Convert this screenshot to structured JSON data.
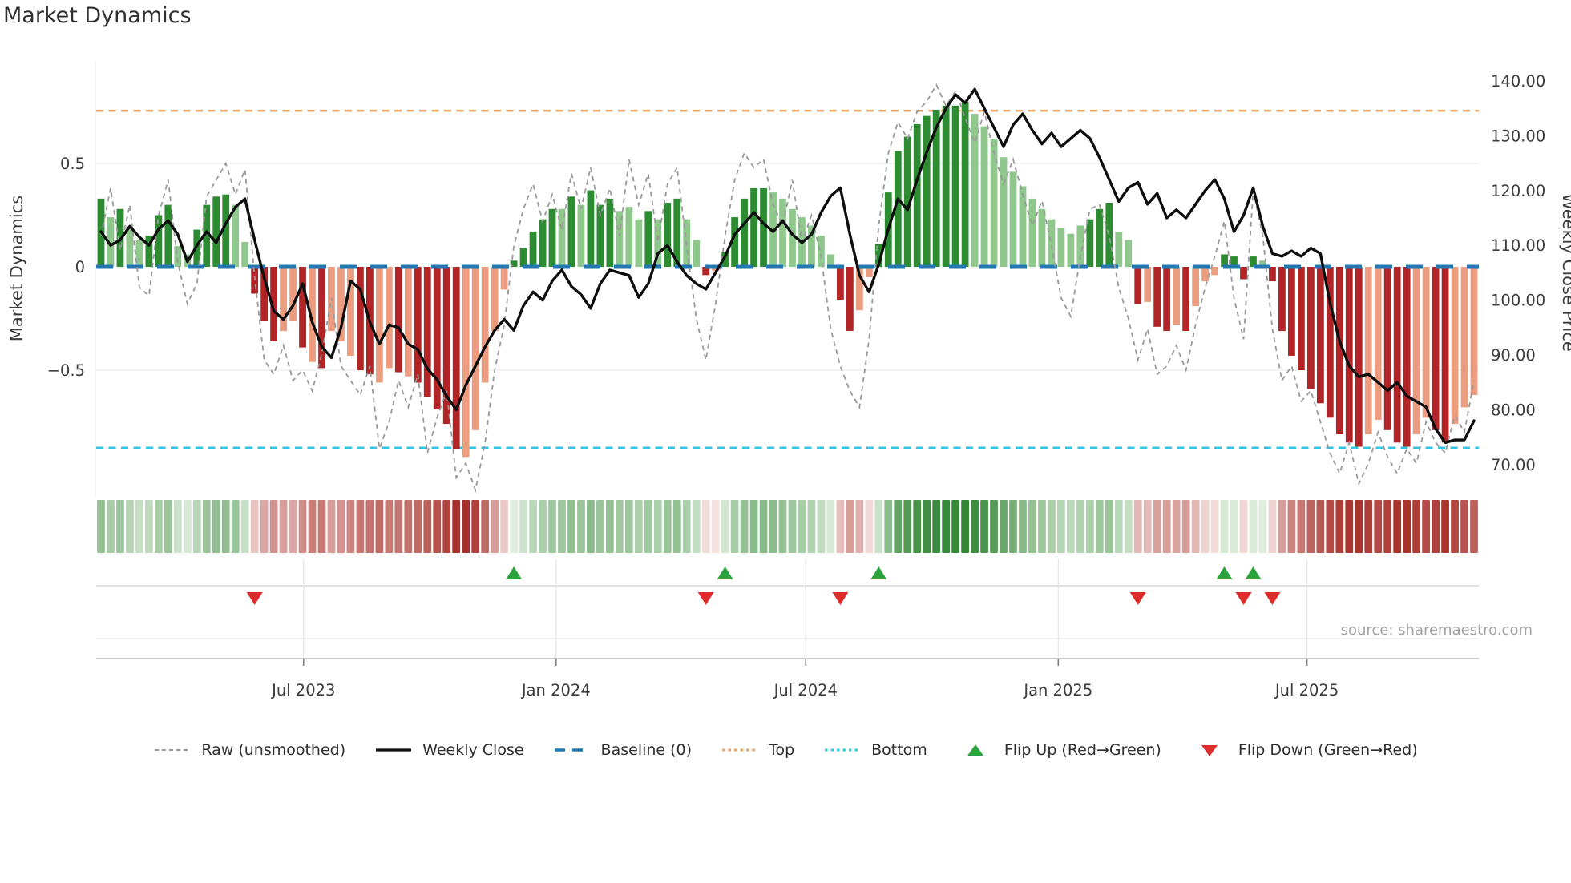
{
  "header": {
    "title": "Market Dynamics"
  },
  "source": {
    "text": "source: sharemaestro.com"
  },
  "colors": {
    "bar_dark_green": "#2d8c32",
    "bar_light_green": "#8fc78c",
    "bar_dark_red": "#b32427",
    "bar_light_red": "#ec9d7f",
    "baseline_blue": "#2577b2",
    "top_orange": "#f2a45f",
    "bottom_cyan": "#2fc6e6",
    "weekly_close_black": "#0e0e0e",
    "raw_gray": "#999999",
    "flip_up_green": "#2aa33c",
    "flip_down_red": "#dd2c2c",
    "grid_gray": "#ececec",
    "tick_text": "#3d3d3d",
    "source_text": "#a3a3a3"
  },
  "legend": {
    "items": [
      {
        "label": "Raw (unsmoothed)",
        "glyph": "raw-dashed-line"
      },
      {
        "label": "Weekly Close",
        "glyph": "solid-black-line"
      },
      {
        "label": "Baseline (0)",
        "glyph": "blue-dashed-line"
      },
      {
        "label": "Top",
        "glyph": "orange-dotted-line"
      },
      {
        "label": "Bottom",
        "glyph": "cyan-dotted-line"
      },
      {
        "label": "Flip Up (Red→Green)",
        "glyph": "green-up-triangle"
      },
      {
        "label": "Flip Down (Green→Red)",
        "glyph": "red-down-triangle"
      }
    ]
  },
  "chart_data": {
    "type": "combo",
    "title": "Market Dynamics",
    "left_axis": {
      "label": "Market Dynamics",
      "tick_labels": [
        "0.5",
        "0",
        "−0.5"
      ],
      "tick_values": [
        0.5,
        0,
        -0.5
      ],
      "range": [
        -1.11,
        1.0
      ]
    },
    "right_axis": {
      "label": "Weekly Close Price",
      "tick_labels": [
        "140.00",
        "130.00",
        "120.00",
        "110.00",
        "100.00",
        "90.00",
        "80.00",
        "70.00"
      ],
      "tick_values": [
        140,
        130,
        120,
        110,
        100,
        90,
        80,
        70
      ],
      "range": [
        64.2,
        143.8
      ]
    },
    "x_axis": {
      "tick_labels": [
        "Jul 2023",
        "Jan 2024",
        "Jul 2024",
        "Jan 2025",
        "Jul 2025"
      ],
      "tick_week_positions": [
        21.1,
        47.4,
        73.4,
        99.7,
        125.6
      ],
      "n_weeks": 144
    },
    "reference_lines": {
      "baseline": 0,
      "top": 0.755,
      "bottom": -0.875
    },
    "series": {
      "oscillator": {
        "type": "bar",
        "shades": "GgGggGGGggGGGGggRRRrrRrRrrrRRrrRrRRRRRrrrrrGGGGGgGgGGGgggGgGGggRrGGGGGgggggggRRrrGGGGGGGGGGggggggggggggGGGggRrRRrRrrrGGRGgRRRRRRRRRRrrRRRrrRRrrr",
        "values": [
          0.33,
          0.24,
          0.28,
          0.19,
          0.13,
          0.15,
          0.25,
          0.3,
          0.1,
          0.06,
          0.18,
          0.3,
          0.34,
          0.35,
          0.3,
          0.12,
          -0.13,
          -0.26,
          -0.36,
          -0.31,
          -0.26,
          -0.39,
          -0.46,
          -0.49,
          -0.31,
          -0.36,
          -0.43,
          -0.5,
          -0.52,
          -0.56,
          -0.49,
          -0.51,
          -0.53,
          -0.56,
          -0.63,
          -0.69,
          -0.76,
          -0.88,
          -0.92,
          -0.79,
          -0.56,
          -0.31,
          -0.11,
          0.03,
          0.09,
          0.17,
          0.23,
          0.28,
          0.28,
          0.34,
          0.3,
          0.37,
          0.3,
          0.33,
          0.27,
          0.29,
          0.23,
          0.27,
          0.23,
          0.31,
          0.33,
          0.23,
          0.13,
          -0.04,
          -0.02,
          0.07,
          0.24,
          0.33,
          0.38,
          0.38,
          0.36,
          0.33,
          0.28,
          0.24,
          0.2,
          0.15,
          0.06,
          -0.16,
          -0.31,
          -0.21,
          -0.05,
          0.11,
          0.36,
          0.56,
          0.63,
          0.69,
          0.73,
          0.76,
          0.78,
          0.78,
          0.8,
          0.74,
          0.68,
          0.62,
          0.53,
          0.46,
          0.39,
          0.33,
          0.28,
          0.23,
          0.19,
          0.16,
          0.2,
          0.23,
          0.28,
          0.31,
          0.17,
          0.13,
          -0.18,
          -0.17,
          -0.29,
          -0.31,
          -0.28,
          -0.31,
          -0.19,
          -0.07,
          -0.04,
          0.06,
          0.05,
          -0.06,
          0.05,
          0.03,
          -0.07,
          -0.31,
          -0.43,
          -0.5,
          -0.59,
          -0.66,
          -0.73,
          -0.81,
          -0.85,
          -0.87,
          -0.81,
          -0.74,
          -0.79,
          -0.85,
          -0.87,
          -0.81,
          -0.73,
          -0.79,
          -0.85,
          -0.76,
          -0.68,
          -0.62
        ]
      },
      "raw_unsmoothed": {
        "type": "line",
        "style": "dashed",
        "values": [
          0.15,
          0.38,
          0.08,
          0.3,
          -0.1,
          -0.14,
          0.25,
          0.42,
          0.02,
          -0.18,
          -0.08,
          0.34,
          0.42,
          0.5,
          0.35,
          0.47,
          -0.05,
          -0.45,
          -0.52,
          -0.38,
          -0.55,
          -0.5,
          -0.6,
          -0.42,
          -0.15,
          -0.48,
          -0.55,
          -0.62,
          -0.48,
          -0.88,
          -0.75,
          -0.55,
          -0.68,
          -0.52,
          -0.9,
          -0.73,
          -0.6,
          -1.02,
          -0.95,
          -1.08,
          -0.85,
          -0.5,
          -0.28,
          0.1,
          0.28,
          0.4,
          0.22,
          0.35,
          0.18,
          0.45,
          0.28,
          0.48,
          0.25,
          0.38,
          0.15,
          0.52,
          0.3,
          0.45,
          0.12,
          0.4,
          0.48,
          0.1,
          -0.25,
          -0.45,
          -0.18,
          0.15,
          0.42,
          0.55,
          0.48,
          0.52,
          0.3,
          0.2,
          0.42,
          0.12,
          0.25,
          0.05,
          -0.3,
          -0.48,
          -0.6,
          -0.68,
          -0.35,
          0.2,
          0.55,
          0.7,
          0.62,
          0.75,
          0.8,
          0.88,
          0.78,
          0.85,
          0.72,
          0.6,
          0.75,
          0.55,
          0.4,
          0.52,
          0.35,
          0.2,
          0.32,
          0.1,
          -0.15,
          -0.24,
          0.05,
          0.28,
          0.3,
          0.15,
          -0.1,
          -0.25,
          -0.45,
          -0.3,
          -0.52,
          -0.48,
          -0.38,
          -0.5,
          -0.28,
          -0.1,
          0.05,
          0.22,
          -0.15,
          -0.35,
          0.37,
          0.15,
          -0.3,
          -0.55,
          -0.48,
          -0.65,
          -0.6,
          -0.75,
          -0.9,
          -1.0,
          -0.85,
          -1.05,
          -0.95,
          -0.8,
          -0.92,
          -1.0,
          -0.88,
          -0.95,
          -0.75,
          -0.85,
          -0.9,
          -0.72,
          -0.8,
          -0.55
        ]
      },
      "weekly_close": {
        "type": "line",
        "axis": "right",
        "values": [
          112.5,
          110,
          111,
          113.5,
          111.5,
          110,
          113,
          114.5,
          112,
          107,
          110,
          112.5,
          110.5,
          114,
          117,
          118.5,
          111,
          104,
          98,
          96.5,
          99,
          103,
          96,
          91.5,
          89.5,
          95,
          103.5,
          102,
          96,
          92,
          95.5,
          95,
          92,
          91,
          87.5,
          85.5,
          82.5,
          80,
          84.5,
          88,
          91.5,
          94.5,
          96.5,
          94.5,
          99,
          101.5,
          100,
          103.5,
          105.5,
          102.5,
          101,
          98.5,
          103,
          105.5,
          105,
          104.5,
          100.5,
          103,
          108.5,
          110,
          107,
          104.5,
          103,
          102,
          105,
          108,
          112,
          114,
          116,
          114,
          112.5,
          114.5,
          112,
          110.5,
          112,
          116,
          119,
          120.5,
          112,
          104.5,
          101.5,
          106.5,
          113,
          118.5,
          116.5,
          122,
          127,
          131.5,
          135,
          137.5,
          136,
          138.5,
          135,
          131.5,
          128,
          132,
          134,
          131,
          128.5,
          130.5,
          128,
          129.5,
          131,
          129.5,
          126,
          122,
          118,
          120.5,
          121.5,
          117.5,
          119.5,
          115,
          116.5,
          115,
          117.5,
          120,
          122,
          118.5,
          112.5,
          115.5,
          120.5,
          113.5,
          108.5,
          108,
          109,
          108,
          109.5,
          108.5,
          99.5,
          92.5,
          88,
          86,
          86.5,
          85,
          83.5,
          85,
          82.5,
          81.5,
          80.5,
          76.5,
          74,
          74.5,
          74.5,
          78
        ]
      }
    },
    "flip_markers": {
      "up_weeks": [
        43,
        65,
        81,
        117,
        120
      ],
      "down_weeks": [
        16,
        63,
        77,
        108,
        119,
        122
      ]
    },
    "heatmap": {
      "derived_from": "oscillator",
      "note": "green/red intensity strip, one cell per week"
    }
  }
}
